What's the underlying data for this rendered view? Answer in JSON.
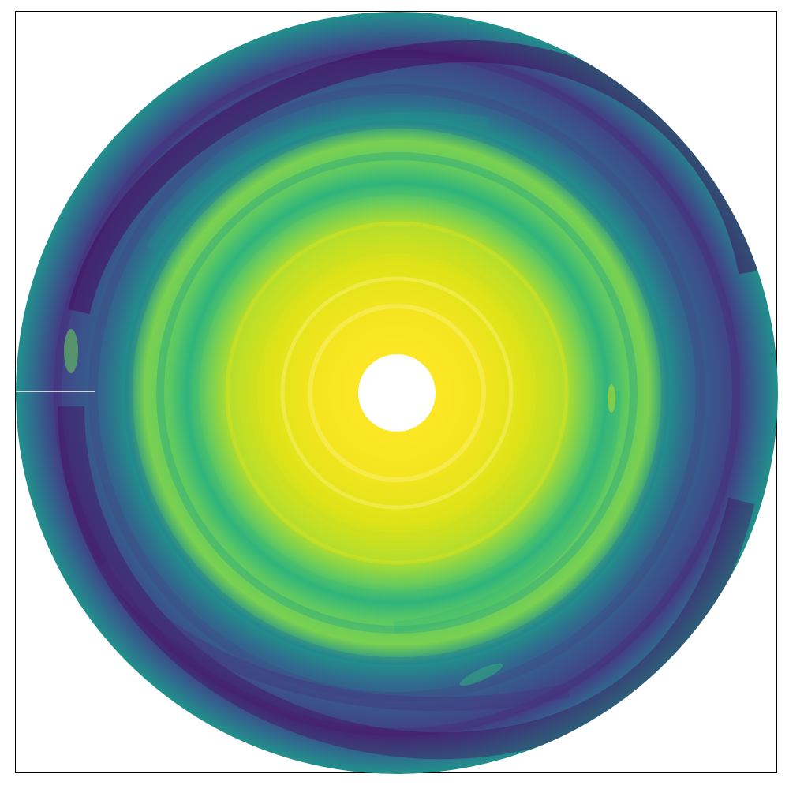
{
  "figure": {
    "kind": "polar-disk-colormap",
    "colormap": "viridis",
    "colors": {
      "inner_high": "#f2e51f",
      "mid_green": "#5cc863",
      "teal": "#21918c",
      "blue": "#3b528b",
      "outer_low": "#472a7a",
      "background": "#ffffff",
      "frame": "#000000"
    },
    "description_tokens": [
      "inner-hole",
      "spiral-arms",
      "gap-marker"
    ]
  }
}
